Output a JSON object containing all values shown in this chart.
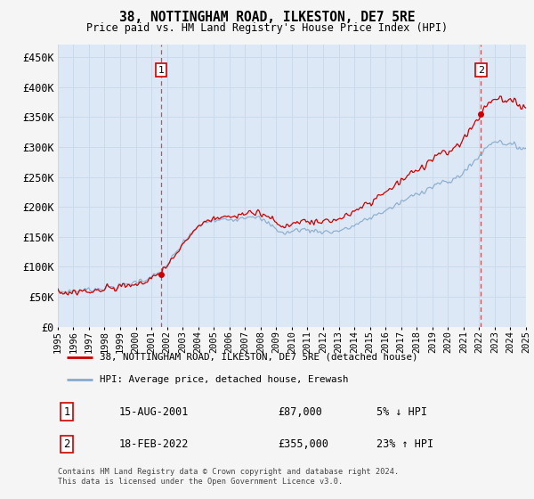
{
  "title": "38, NOTTINGHAM ROAD, ILKESTON, DE7 5RE",
  "subtitle": "Price paid vs. HM Land Registry's House Price Index (HPI)",
  "ylim": [
    0,
    470000
  ],
  "yticks": [
    0,
    50000,
    100000,
    150000,
    200000,
    250000,
    300000,
    350000,
    400000,
    450000
  ],
  "ytick_labels": [
    "£0",
    "£50K",
    "£100K",
    "£150K",
    "£200K",
    "£250K",
    "£300K",
    "£350K",
    "£400K",
    "£450K"
  ],
  "background_color": "#f5f5f5",
  "plot_background": "#dce8f5",
  "grid_color": "#c8d8e8",
  "sale1_date": 2001.62,
  "sale1_price": 87000,
  "sale2_date": 2022.12,
  "sale2_price": 355000,
  "legend_label1": "38, NOTTINGHAM ROAD, ILKESTON, DE7 5RE (detached house)",
  "legend_label2": "HPI: Average price, detached house, Erewash",
  "annotation1_date": "15-AUG-2001",
  "annotation1_price": "£87,000",
  "annotation1_hpi": "5% ↓ HPI",
  "annotation2_date": "18-FEB-2022",
  "annotation2_price": "£355,000",
  "annotation2_hpi": "23% ↑ HPI",
  "footer": "Contains HM Land Registry data © Crown copyright and database right 2024.\nThis data is licensed under the Open Government Licence v3.0.",
  "line_color_red": "#cc0000",
  "line_color_blue": "#88aacc",
  "xstart": 1995,
  "xend": 2025
}
